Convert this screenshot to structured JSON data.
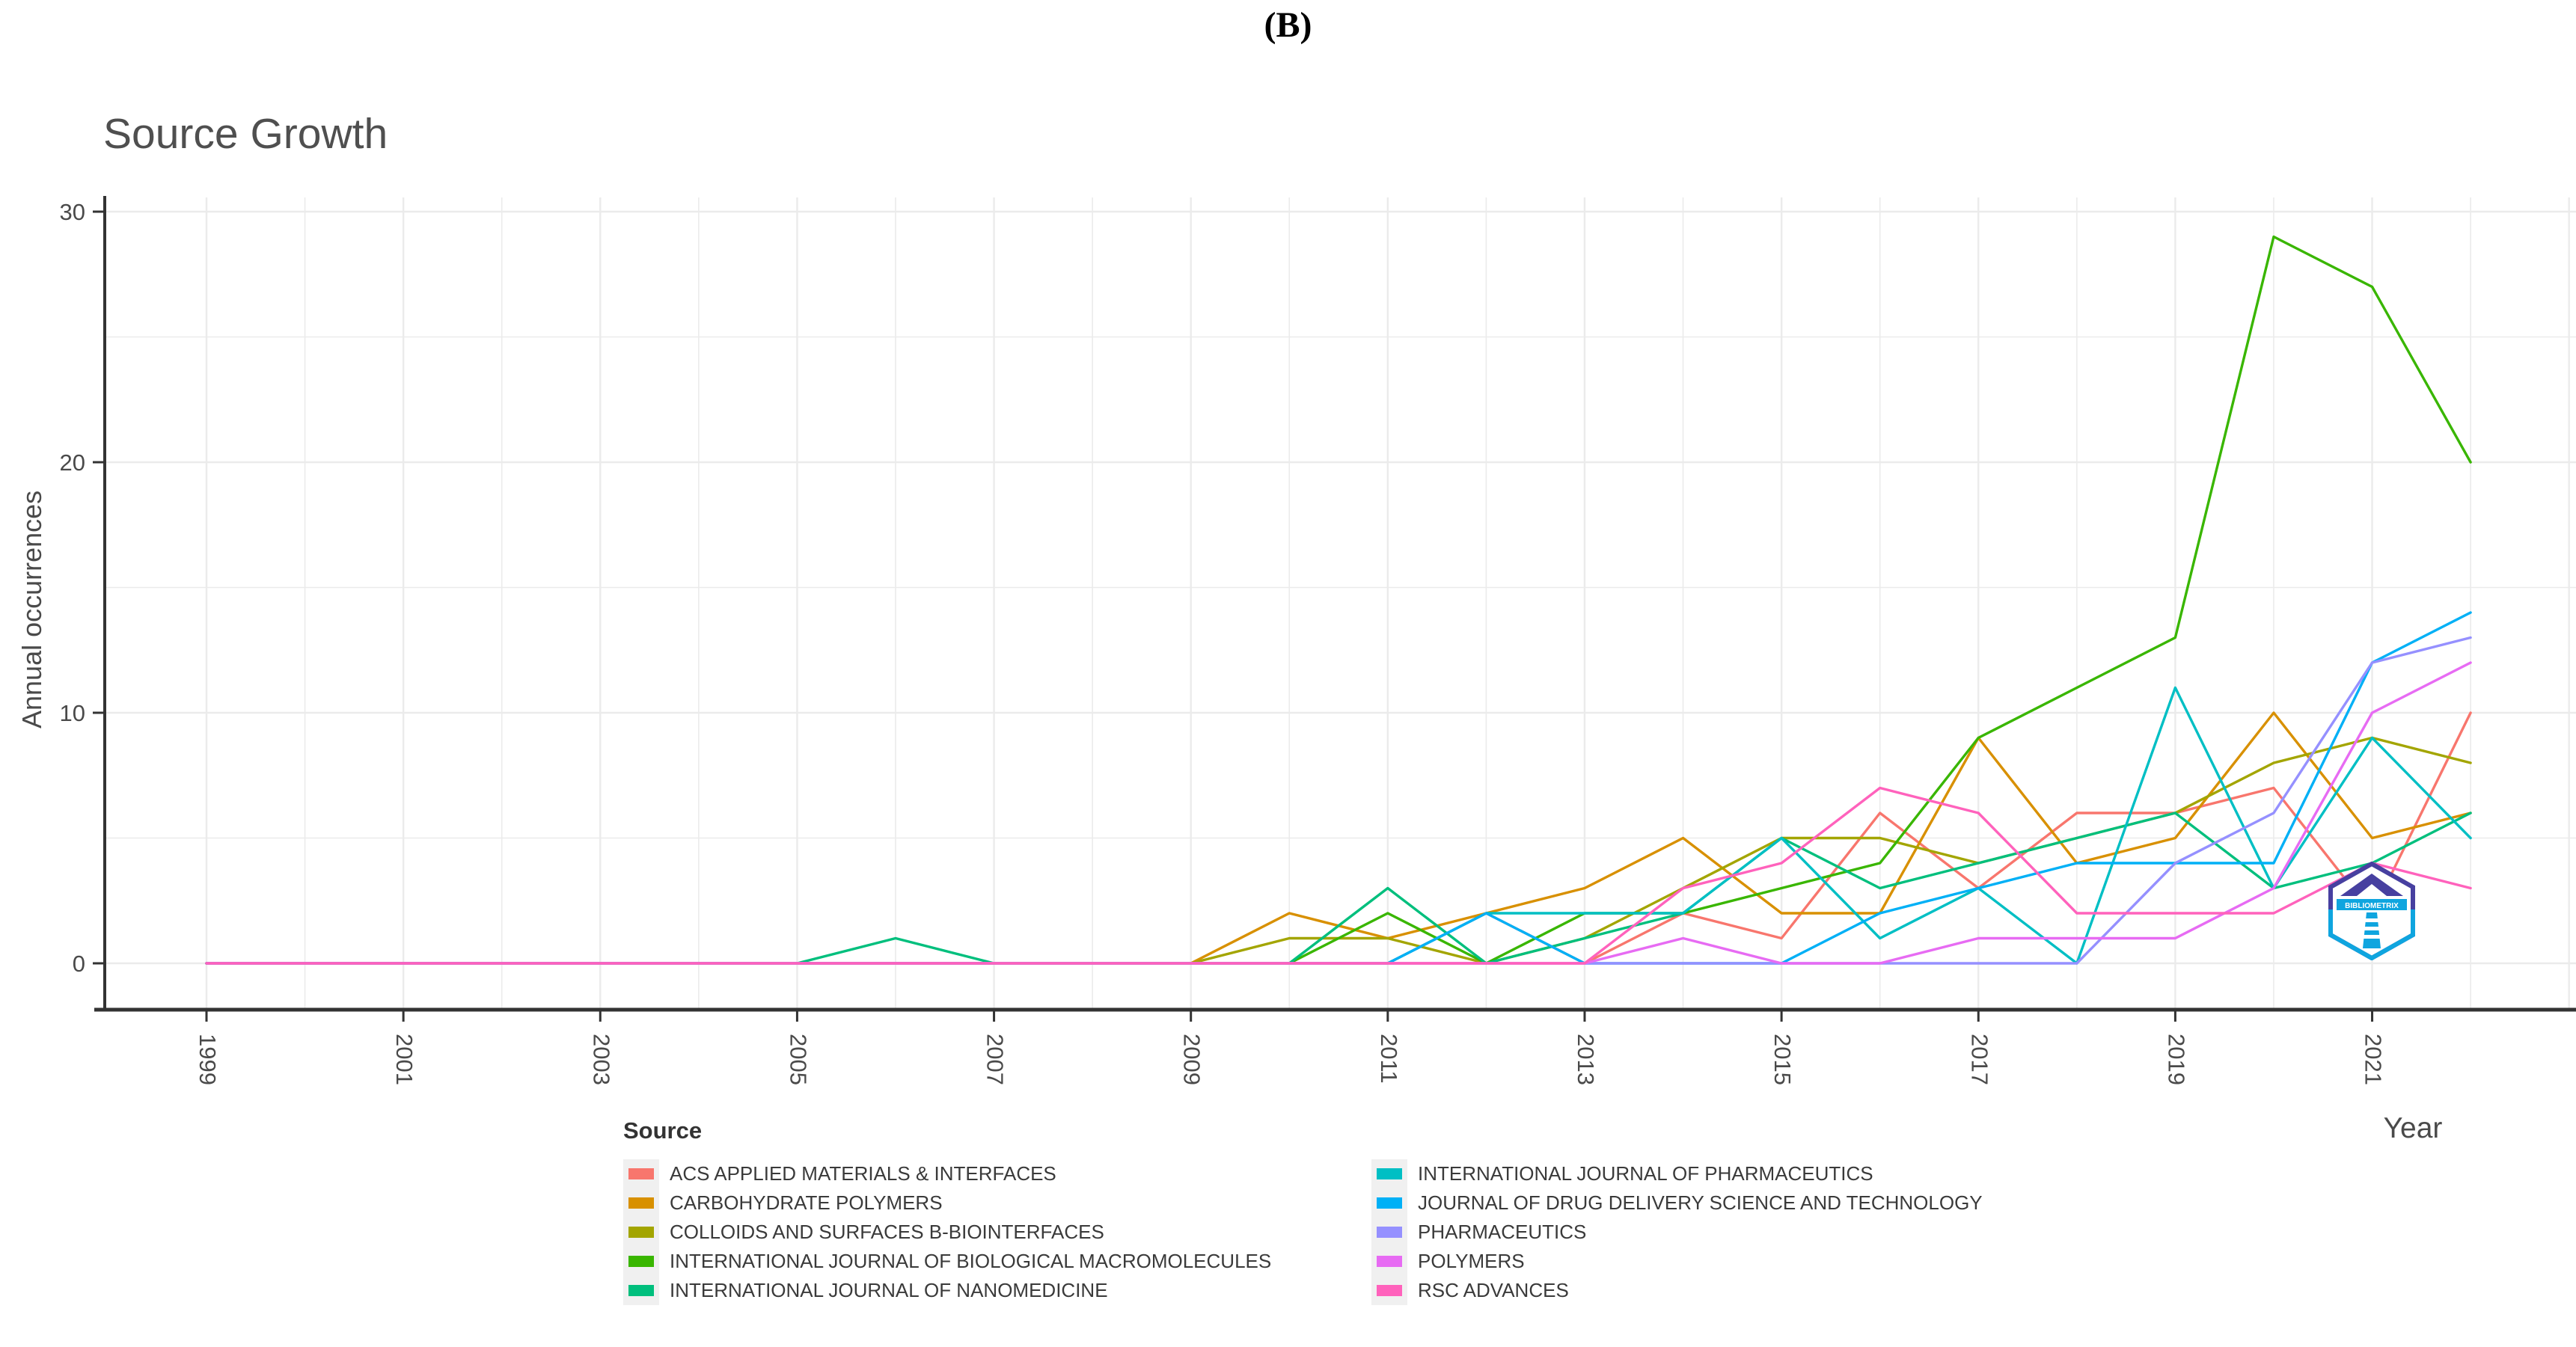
{
  "figure_label": "(B)",
  "watermark": {
    "text": "BIBLIOMETRIX"
  },
  "chart_data": {
    "type": "line",
    "title": "Source Growth",
    "xlabel": "Year",
    "ylabel": "Annual occurrences",
    "legend_title": "Source",
    "legend_position": "bottom",
    "grid": true,
    "ylim": [
      0,
      30
    ],
    "y_ticks": [
      0,
      10,
      20,
      30
    ],
    "x_ticks": [
      1999,
      2001,
      2003,
      2005,
      2007,
      2009,
      2011,
      2013,
      2015,
      2017,
      2019,
      2021
    ],
    "x": [
      1999,
      2000,
      2001,
      2002,
      2003,
      2004,
      2005,
      2006,
      2007,
      2008,
      2009,
      2010,
      2011,
      2012,
      2013,
      2014,
      2015,
      2016,
      2017,
      2018,
      2019,
      2020,
      2021,
      2022
    ],
    "series": [
      {
        "name": "ACS APPLIED MATERIALS & INTERFACES",
        "color": "#F8766D",
        "values": [
          0,
          0,
          0,
          0,
          0,
          0,
          0,
          0,
          0,
          0,
          0,
          0,
          0,
          2,
          0,
          2,
          1,
          6,
          3,
          6,
          6,
          7,
          2,
          10
        ]
      },
      {
        "name": "CARBOHYDRATE POLYMERS",
        "color": "#D89000",
        "values": [
          0,
          0,
          0,
          0,
          0,
          0,
          0,
          0,
          0,
          0,
          0,
          2,
          1,
          2,
          3,
          5,
          2,
          2,
          9,
          4,
          5,
          10,
          5,
          6
        ]
      },
      {
        "name": "COLLOIDS AND SURFACES B-BIOINTERFACES",
        "color": "#A3A500",
        "values": [
          0,
          0,
          0,
          0,
          0,
          0,
          0,
          0,
          0,
          0,
          0,
          1,
          1,
          0,
          1,
          3,
          5,
          5,
          4,
          5,
          6,
          8,
          9,
          8
        ]
      },
      {
        "name": "INTERNATIONAL JOURNAL OF BIOLOGICAL MACROMOLECULES",
        "color": "#39B600",
        "values": [
          0,
          0,
          0,
          0,
          0,
          0,
          0,
          0,
          0,
          0,
          0,
          0,
          2,
          0,
          2,
          2,
          3,
          4,
          9,
          11,
          13,
          29,
          27,
          20
        ]
      },
      {
        "name": "INTERNATIONAL JOURNAL OF NANOMEDICINE",
        "color": "#00BF7D",
        "values": [
          0,
          0,
          0,
          0,
          0,
          0,
          0,
          1,
          0,
          0,
          0,
          0,
          3,
          0,
          1,
          2,
          5,
          3,
          4,
          5,
          6,
          3,
          4,
          6
        ]
      },
      {
        "name": "INTERNATIONAL JOURNAL OF PHARMACEUTICS",
        "color": "#00BFC4",
        "values": [
          0,
          0,
          0,
          0,
          0,
          0,
          0,
          0,
          0,
          0,
          0,
          0,
          0,
          2,
          2,
          2,
          5,
          1,
          3,
          0,
          11,
          3,
          9,
          5
        ]
      },
      {
        "name": "JOURNAL OF DRUG DELIVERY SCIENCE AND TECHNOLOGY",
        "color": "#00B0F6",
        "values": [
          0,
          0,
          0,
          0,
          0,
          0,
          0,
          0,
          0,
          0,
          0,
          0,
          0,
          2,
          0,
          0,
          0,
          2,
          3,
          4,
          4,
          4,
          12,
          14
        ]
      },
      {
        "name": "PHARMACEUTICS",
        "color": "#9590FF",
        "values": [
          0,
          0,
          0,
          0,
          0,
          0,
          0,
          0,
          0,
          0,
          0,
          0,
          0,
          0,
          0,
          0,
          0,
          0,
          0,
          0,
          4,
          6,
          12,
          13
        ]
      },
      {
        "name": "POLYMERS",
        "color": "#E76BF3",
        "values": [
          0,
          0,
          0,
          0,
          0,
          0,
          0,
          0,
          0,
          0,
          0,
          0,
          0,
          0,
          0,
          1,
          0,
          0,
          1,
          1,
          1,
          3,
          10,
          12
        ]
      },
      {
        "name": "RSC ADVANCES",
        "color": "#FF62BC",
        "values": [
          0,
          0,
          0,
          0,
          0,
          0,
          0,
          0,
          0,
          0,
          0,
          0,
          0,
          0,
          0,
          3,
          4,
          7,
          6,
          2,
          2,
          2,
          4,
          3
        ]
      }
    ]
  }
}
